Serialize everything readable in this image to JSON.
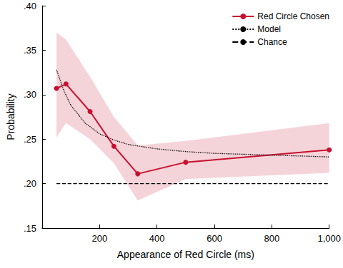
{
  "chart_data": {
    "type": "line",
    "x_label": "Appearance of Red Circle (ms)",
    "y_label": "Probability",
    "xlim": [
      0,
      1000
    ],
    "xticks": [
      200,
      400,
      600,
      800,
      {
        "value": 1000,
        "label": "1,000"
      }
    ],
    "ylim": [
      0.15,
      0.4
    ],
    "yticks": [
      {
        "value": 0.15,
        "label": ".15"
      },
      {
        "value": 0.2,
        "label": ".20"
      },
      {
        "value": 0.25,
        "label": ".25"
      },
      {
        "value": 0.3,
        "label": ".30"
      },
      {
        "value": 0.35,
        "label": ".35"
      },
      {
        "value": 0.4,
        "label": ".40"
      }
    ],
    "grid": false,
    "legend": "top-right",
    "series": [
      {
        "name": "Red Circle Chosen",
        "color": "#c8102e",
        "marker": "circle",
        "line_style": "solid",
        "x": [
          50,
          83,
          167,
          250,
          333,
          500,
          1000
        ],
        "values": [
          0.307,
          0.312,
          0.281,
          0.242,
          0.211,
          0.224,
          0.238
        ],
        "lower": [
          0.252,
          0.268,
          0.25,
          0.223,
          0.181,
          0.205,
          0.212
        ],
        "upper": [
          0.37,
          0.362,
          0.32,
          0.275,
          0.243,
          0.248,
          0.268
        ]
      },
      {
        "name": "Model",
        "color": "#000000",
        "marker": "none",
        "line_style": "dotted",
        "x": [
          50,
          75,
          100,
          150,
          200,
          250,
          300,
          400,
          500,
          600,
          800,
          1000
        ],
        "values": [
          0.328,
          0.305,
          0.288,
          0.268,
          0.256,
          0.249,
          0.244,
          0.239,
          0.236,
          0.234,
          0.232,
          0.23
        ]
      },
      {
        "name": "Chance",
        "color": "#000000",
        "marker": "none",
        "line_style": "dashed",
        "x": [
          50,
          1000
        ],
        "values": [
          0.2,
          0.2
        ]
      }
    ]
  }
}
